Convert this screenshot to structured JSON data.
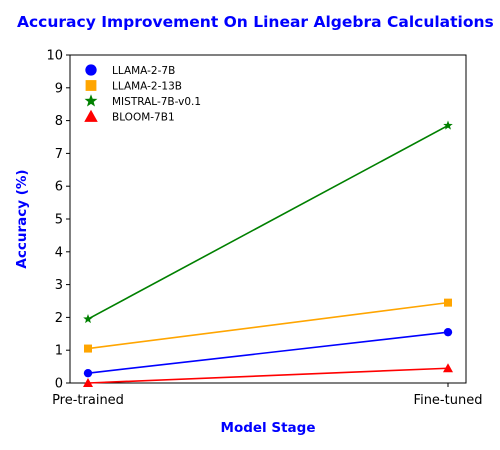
{
  "chart_data": {
    "type": "line",
    "title": "Accuracy Improvement On Linear Algebra Calculations",
    "xlabel": "Model Stage",
    "ylabel": "Accuracy (%)",
    "categories": [
      "Pre-trained",
      "Fine-tuned"
    ],
    "ylim": [
      0,
      10
    ],
    "yticks": [
      0,
      1,
      2,
      3,
      4,
      5,
      6,
      7,
      8,
      9,
      10
    ],
    "grid": false,
    "legend_position": "top-left",
    "title_color": "#0000ff",
    "label_color": "#0000ff",
    "series": [
      {
        "name": "LLAMA-2-7B",
        "values": [
          0.3,
          1.55
        ],
        "color": "#0000ff",
        "marker": "circle"
      },
      {
        "name": "LLAMA-2-13B",
        "values": [
          1.05,
          2.45
        ],
        "color": "#ffa500",
        "marker": "square"
      },
      {
        "name": "MISTRAL-7B-v0.1",
        "values": [
          1.95,
          7.85
        ],
        "color": "#008000",
        "marker": "star"
      },
      {
        "name": "BLOOM-7B1",
        "values": [
          0.0,
          0.45
        ],
        "color": "#ff0000",
        "marker": "triangle"
      }
    ]
  }
}
